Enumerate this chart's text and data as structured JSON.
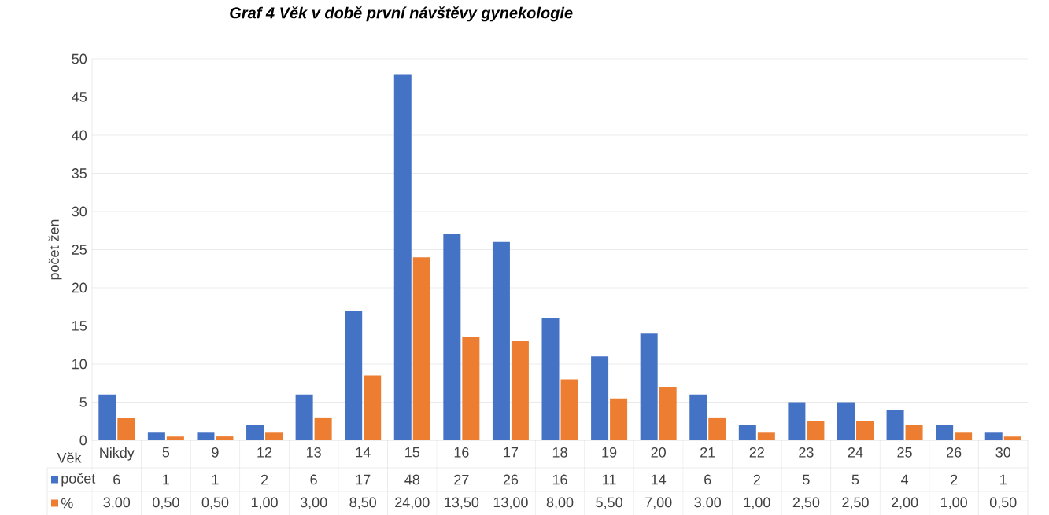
{
  "chart_data": {
    "type": "bar",
    "title": "Graf 4 Věk v době první návštěvy gynekologie",
    "xlabel": "Věk",
    "ylabel": "počet žen",
    "categories": [
      "Nikdy",
      "5",
      "9",
      "12",
      "13",
      "14",
      "15",
      "16",
      "17",
      "18",
      "19",
      "20",
      "21",
      "22",
      "23",
      "24",
      "25",
      "26",
      "30"
    ],
    "series": [
      {
        "name": "počet",
        "color": "#4472c4",
        "values": [
          6,
          1,
          1,
          2,
          6,
          17,
          48,
          27,
          26,
          16,
          11,
          14,
          6,
          2,
          5,
          5,
          4,
          2,
          1
        ],
        "value_labels": [
          "6",
          "1",
          "1",
          "2",
          "6",
          "17",
          "48",
          "27",
          "26",
          "16",
          "11",
          "14",
          "6",
          "2",
          "5",
          "5",
          "4",
          "2",
          "1"
        ]
      },
      {
        "name": "%",
        "color": "#ed7d31",
        "values": [
          3,
          0.5,
          0.5,
          1,
          3,
          8.5,
          24,
          13.5,
          13,
          8,
          5.5,
          7,
          3,
          1,
          2.5,
          2.5,
          2,
          1,
          0.5
        ],
        "value_labels": [
          "3,00",
          "0,50",
          "0,50",
          "1,00",
          "3,00",
          "8,50",
          "24,00",
          "13,50",
          "13,00",
          "8,00",
          "5,50",
          "7,00",
          "3,00",
          "1,00",
          "2,50",
          "2,50",
          "2,00",
          "1,00",
          "0,50"
        ]
      }
    ],
    "ylim": [
      0,
      50
    ],
    "yticks": [
      0,
      5,
      10,
      15,
      20,
      25,
      30,
      35,
      40,
      45,
      50
    ],
    "grid": "y",
    "legend": "bottom"
  }
}
